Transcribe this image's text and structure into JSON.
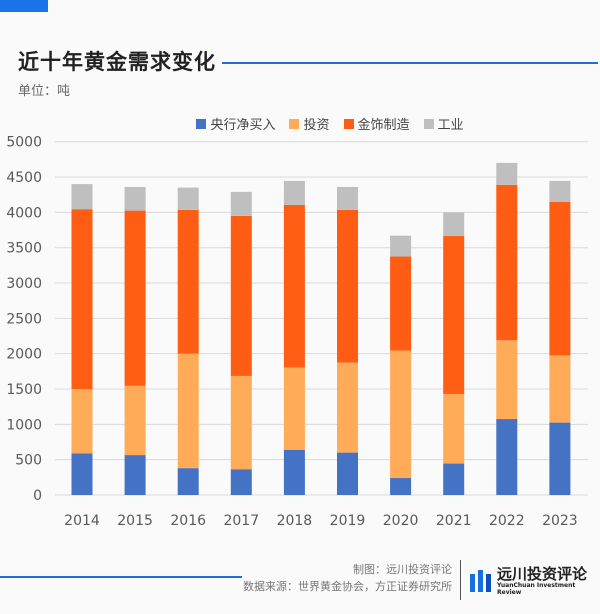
{
  "header": {
    "title": "近十年黄金需求变化",
    "unit": "单位：吨"
  },
  "footer": {
    "made_by": "制图：远川投资评论",
    "source": "数据来源：世界黄金协会，方正证券研究所",
    "logo_name": "远川投资评论",
    "logo_en": "YuanChuan Investment Review"
  },
  "chart_data": {
    "type": "bar",
    "stacked": true,
    "categories": [
      "2014",
      "2015",
      "2016",
      "2017",
      "2018",
      "2019",
      "2020",
      "2021",
      "2022",
      "2023"
    ],
    "series": [
      {
        "name": "央行净买入",
        "color": "#4472c4",
        "values": [
          590,
          565,
          380,
          365,
          640,
          600,
          240,
          445,
          1075,
          1025
        ]
      },
      {
        "name": "投资",
        "color": "#ffab57",
        "values": [
          910,
          980,
          1620,
          1320,
          1165,
          1275,
          1805,
          985,
          1115,
          950
        ]
      },
      {
        "name": "金饰制造",
        "color": "#ff5c14",
        "values": [
          2545,
          2480,
          2035,
          2265,
          2300,
          2160,
          1330,
          2235,
          2200,
          2175
        ]
      },
      {
        "name": "工业",
        "color": "#bfbfbf",
        "values": [
          355,
          335,
          315,
          340,
          340,
          325,
          295,
          335,
          310,
          295
        ]
      }
    ],
    "ylim": [
      0,
      5000
    ],
    "yticks": [
      "0",
      "500",
      "1000",
      "1500",
      "2000",
      "2500",
      "3000",
      "3500",
      "4000",
      "4500",
      "5000"
    ],
    "grid": true,
    "legend": "top"
  }
}
